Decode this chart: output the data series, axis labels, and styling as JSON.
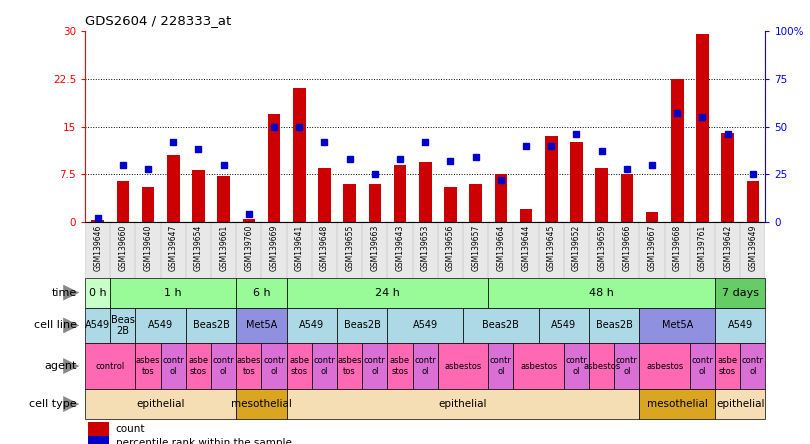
{
  "title": "GDS2604 / 228333_at",
  "samples": [
    "GSM139646",
    "GSM139660",
    "GSM139640",
    "GSM139647",
    "GSM139654",
    "GSM139661",
    "GSM139760",
    "GSM139669",
    "GSM139641",
    "GSM139648",
    "GSM139655",
    "GSM139663",
    "GSM139643",
    "GSM139653",
    "GSM139656",
    "GSM139657",
    "GSM139664",
    "GSM139644",
    "GSM139645",
    "GSM139652",
    "GSM139659",
    "GSM139666",
    "GSM139667",
    "GSM139668",
    "GSM139761",
    "GSM139642",
    "GSM139649"
  ],
  "counts": [
    0.3,
    6.5,
    5.5,
    10.5,
    8.2,
    7.2,
    0.5,
    17.0,
    21.0,
    8.5,
    6.0,
    6.0,
    9.0,
    9.5,
    5.5,
    6.0,
    7.5,
    2.0,
    13.5,
    12.5,
    8.5,
    7.5,
    1.5,
    22.5,
    29.5,
    14.0,
    6.5
  ],
  "percentiles": [
    2.0,
    30.0,
    28.0,
    42.0,
    38.0,
    30.0,
    4.0,
    50.0,
    50.0,
    42.0,
    33.0,
    25.0,
    33.0,
    42.0,
    32.0,
    34.0,
    22.0,
    40.0,
    40.0,
    46.0,
    37.0,
    28.0,
    30.0,
    57.0,
    55.0,
    46.0,
    25.0
  ],
  "ylim_left": [
    0,
    30
  ],
  "ylim_right": [
    0,
    100
  ],
  "yticks_left": [
    0,
    7.5,
    15,
    22.5,
    30
  ],
  "yticks_right": [
    0,
    25,
    50,
    75,
    100
  ],
  "ytick_labels_left": [
    "0",
    "7.5",
    "15",
    "22.5",
    "30"
  ],
  "ytick_labels_right": [
    "0",
    "25",
    "50",
    "75",
    "100%"
  ],
  "bar_color": "#cc0000",
  "dot_color": "#0000cc",
  "bg_color": "#ffffff",
  "time_segments": [
    {
      "label": "0 h",
      "span": [
        0,
        1
      ],
      "color": "#c8ffc8"
    },
    {
      "label": "1 h",
      "span": [
        1,
        6
      ],
      "color": "#98fb98"
    },
    {
      "label": "6 h",
      "span": [
        6,
        8
      ],
      "color": "#98fb98"
    },
    {
      "label": "24 h",
      "span": [
        8,
        16
      ],
      "color": "#98fb98"
    },
    {
      "label": "48 h",
      "span": [
        16,
        25
      ],
      "color": "#98fb98"
    },
    {
      "label": "7 days",
      "span": [
        25,
        27
      ],
      "color": "#66cc66"
    }
  ],
  "cell_line_segments": [
    {
      "label": "A549",
      "span": [
        0,
        1
      ],
      "color": "#add8e6"
    },
    {
      "label": "Beas\n2B",
      "span": [
        1,
        2
      ],
      "color": "#add8e6"
    },
    {
      "label": "A549",
      "span": [
        2,
        4
      ],
      "color": "#add8e6"
    },
    {
      "label": "Beas2B",
      "span": [
        4,
        6
      ],
      "color": "#add8e6"
    },
    {
      "label": "Met5A",
      "span": [
        6,
        8
      ],
      "color": "#9090e0"
    },
    {
      "label": "A549",
      "span": [
        8,
        10
      ],
      "color": "#add8e6"
    },
    {
      "label": "Beas2B",
      "span": [
        10,
        12
      ],
      "color": "#add8e6"
    },
    {
      "label": "A549",
      "span": [
        12,
        15
      ],
      "color": "#add8e6"
    },
    {
      "label": "Beas2B",
      "span": [
        15,
        18
      ],
      "color": "#add8e6"
    },
    {
      "label": "A549",
      "span": [
        18,
        20
      ],
      "color": "#add8e6"
    },
    {
      "label": "Beas2B",
      "span": [
        20,
        22
      ],
      "color": "#add8e6"
    },
    {
      "label": "Met5A",
      "span": [
        22,
        25
      ],
      "color": "#9090e0"
    },
    {
      "label": "A549",
      "span": [
        25,
        27
      ],
      "color": "#add8e6"
    }
  ],
  "agent_segments": [
    {
      "label": "control",
      "span": [
        0,
        2
      ],
      "color": "#ff69b4"
    },
    {
      "label": "asbes\ntos",
      "span": [
        2,
        3
      ],
      "color": "#ff69b4"
    },
    {
      "label": "contr\nol",
      "span": [
        3,
        4
      ],
      "color": "#da70d6"
    },
    {
      "label": "asbe\nstos",
      "span": [
        4,
        5
      ],
      "color": "#ff69b4"
    },
    {
      "label": "contr\nol",
      "span": [
        5,
        6
      ],
      "color": "#da70d6"
    },
    {
      "label": "asbes\ntos",
      "span": [
        6,
        7
      ],
      "color": "#ff69b4"
    },
    {
      "label": "contr\nol",
      "span": [
        7,
        8
      ],
      "color": "#da70d6"
    },
    {
      "label": "asbe\nstos",
      "span": [
        8,
        9
      ],
      "color": "#ff69b4"
    },
    {
      "label": "contr\nol",
      "span": [
        9,
        10
      ],
      "color": "#da70d6"
    },
    {
      "label": "asbes\ntos",
      "span": [
        10,
        11
      ],
      "color": "#ff69b4"
    },
    {
      "label": "contr\nol",
      "span": [
        11,
        12
      ],
      "color": "#da70d6"
    },
    {
      "label": "asbe\nstos",
      "span": [
        12,
        13
      ],
      "color": "#ff69b4"
    },
    {
      "label": "contr\nol",
      "span": [
        13,
        14
      ],
      "color": "#da70d6"
    },
    {
      "label": "asbestos",
      "span": [
        14,
        16
      ],
      "color": "#ff69b4"
    },
    {
      "label": "contr\nol",
      "span": [
        16,
        17
      ],
      "color": "#da70d6"
    },
    {
      "label": "asbestos",
      "span": [
        17,
        19
      ],
      "color": "#ff69b4"
    },
    {
      "label": "contr\nol",
      "span": [
        19,
        20
      ],
      "color": "#da70d6"
    },
    {
      "label": "asbestos",
      "span": [
        20,
        21
      ],
      "color": "#ff69b4"
    },
    {
      "label": "contr\nol",
      "span": [
        21,
        22
      ],
      "color": "#da70d6"
    },
    {
      "label": "asbestos",
      "span": [
        22,
        24
      ],
      "color": "#ff69b4"
    },
    {
      "label": "contr\nol",
      "span": [
        24,
        25
      ],
      "color": "#da70d6"
    },
    {
      "label": "asbe\nstos",
      "span": [
        25,
        26
      ],
      "color": "#ff69b4"
    },
    {
      "label": "contr\nol",
      "span": [
        26,
        27
      ],
      "color": "#da70d6"
    }
  ],
  "cell_type_segments": [
    {
      "label": "epithelial",
      "span": [
        0,
        6
      ],
      "color": "#f5deb3"
    },
    {
      "label": "mesothelial",
      "span": [
        6,
        8
      ],
      "color": "#daa520"
    },
    {
      "label": "epithelial",
      "span": [
        8,
        22
      ],
      "color": "#f5deb3"
    },
    {
      "label": "mesothelial",
      "span": [
        22,
        25
      ],
      "color": "#daa520"
    },
    {
      "label": "epithelial",
      "span": [
        25,
        27
      ],
      "color": "#f5deb3"
    }
  ],
  "row_labels": [
    "time",
    "cell line",
    "agent",
    "cell type"
  ],
  "legend": [
    {
      "label": "count",
      "color": "#cc0000"
    },
    {
      "label": "percentile rank within the sample",
      "color": "#0000cc"
    }
  ]
}
